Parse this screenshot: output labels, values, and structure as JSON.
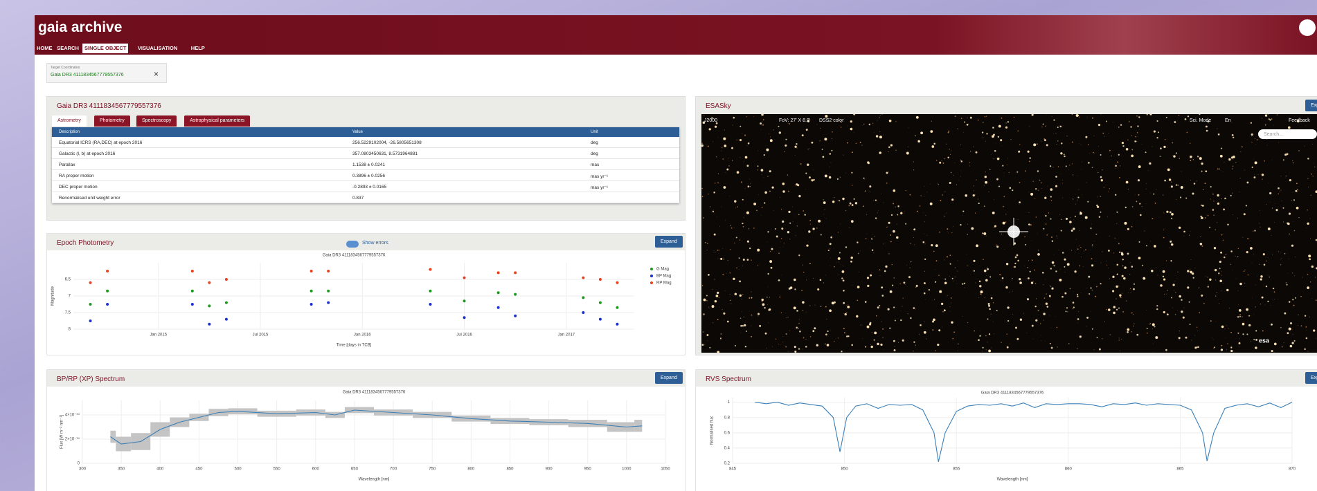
{
  "header": {
    "title": "gaia archive",
    "nav": [
      "HOME",
      "SEARCH",
      "SINGLE OBJECT",
      "VISUALISATION",
      "HELP"
    ]
  },
  "target": {
    "label": "Target Coordinates",
    "value": "Gaia DR3 4111834567779557376",
    "close": "×"
  },
  "object_panel": {
    "title": "Gaia DR3 4111834567779557376",
    "tabs": [
      "Astrometry",
      "Photometry",
      "Spectroscopy",
      "Astrophysical parameters"
    ],
    "table": {
      "columns": [
        "Description",
        "Value",
        "Unit"
      ],
      "rows": [
        [
          "Equatorial ICRS (RA,DEC) at epoch 2016",
          "256.5229102004, -26.5805651308",
          "deg"
        ],
        [
          "Galactic (l, b) at epoch 2016",
          "357.0803450631, 8.5731964881",
          "deg"
        ],
        [
          "Parallax",
          "1.1538 ± 0.0241",
          "mas"
        ],
        [
          "RA proper motion",
          "0.3896 ± 0.0256",
          "mas yr⁻¹"
        ],
        [
          "DEC proper motion",
          "-0.2893 ± 0.0165",
          "mas yr⁻¹"
        ],
        [
          "Renormalised unit weight error",
          "0.837"
        ]
      ]
    }
  },
  "epoch_panel": {
    "title": "Epoch Photometry",
    "toggle": "Show errors",
    "button": "Expand"
  },
  "xp_panel": {
    "title": "BP/RP (XP) Spectrum",
    "button": "Expand"
  },
  "rvs_panel": {
    "title": "RVS Spectrum",
    "button": "Expand"
  },
  "esasky": {
    "title": "ESASky",
    "button": "Expand",
    "frame": "J2000",
    "fov": "FoV: 27' X 8.9'",
    "survey": "DSS2 color",
    "sci_mode": "Sci. Mode",
    "lang": "En",
    "search": "Search...",
    "feedback": "Feedback",
    "logo": "esa"
  },
  "chart_data": [
    {
      "type": "scatter",
      "title": "Gaia DR3 4111834567779557376",
      "x_label": "Time [days in TCB]",
      "y_label": "Magnitude",
      "grid": true,
      "legend": "right",
      "x": [
        "2014-09",
        "2014-10",
        "2015-03",
        "2015-04",
        "2015-05",
        "2015-10",
        "2015-11",
        "2016-05",
        "2016-07",
        "2016-09",
        "2016-10",
        "2017-02",
        "2017-03",
        "2017-04"
      ],
      "xlim": [
        "2014-08",
        "2017-05"
      ],
      "xticks": [
        {
          "value": "2015-01",
          "label": "Jan 2015"
        },
        {
          "value": "2015-07",
          "label": "Jul 2015"
        },
        {
          "value": "2016-01",
          "label": "Jan 2016"
        },
        {
          "value": "2016-07",
          "label": "Jul 2016"
        },
        {
          "value": "2017-01",
          "label": "Jan 2017"
        }
      ],
      "ylim": [
        8,
        6
      ],
      "yticks": [
        6.5,
        7,
        7.5,
        8
      ],
      "series": [
        {
          "name": "G Mag",
          "color": "#1a9a1a",
          "values": [
            7.25,
            6.85,
            6.85,
            7.3,
            7.2,
            6.85,
            6.85,
            6.85,
            7.15,
            6.9,
            6.95,
            7.05,
            7.2,
            7.35
          ]
        },
        {
          "name": "BP Mag",
          "color": "#1a2fd0",
          "values": [
            7.75,
            7.25,
            7.25,
            7.85,
            7.7,
            7.25,
            7.2,
            7.25,
            7.65,
            7.35,
            7.6,
            7.5,
            7.7,
            7.85
          ]
        },
        {
          "name": "RP Mag",
          "color": "#e8401c",
          "values": [
            6.6,
            6.25,
            6.25,
            6.6,
            6.5,
            6.25,
            6.25,
            6.2,
            6.45,
            6.3,
            6.3,
            6.45,
            6.5,
            6.6
          ]
        }
      ]
    },
    {
      "type": "line",
      "title": "Gaia DR3 4111834567779557376",
      "x_label": "Wavelength [nm]",
      "y_label": "Flux [W m⁻² nm⁻¹]",
      "grid": true,
      "xlim": [
        300,
        1050
      ],
      "xticks": [
        300,
        350,
        400,
        450,
        500,
        550,
        600,
        650,
        700,
        750,
        800,
        850,
        900,
        950,
        1000,
        1050
      ],
      "ylim": [
        0,
        5.2e-14
      ],
      "yticks": [
        0,
        {
          "value": 2e-14,
          "label": "2×10⁻¹⁴"
        },
        {
          "value": 4e-14,
          "label": "4×10⁻¹⁴"
        }
      ],
      "x": [
        336,
        350,
        375,
        400,
        425,
        450,
        475,
        500,
        550,
        600,
        625,
        650,
        700,
        750,
        800,
        850,
        900,
        950,
        1000,
        1020
      ],
      "series": [
        {
          "color": "#3a7fb7",
          "band_color": "#c4c4c4",
          "values": [
            2.2e-14,
            1.6e-14,
            1.8e-14,
            2.8e-14,
            3.4e-14,
            3.8e-14,
            4.2e-14,
            4.3e-14,
            4.1e-14,
            4.2e-14,
            4e-14,
            4.4e-14,
            4.2e-14,
            4e-14,
            3.7e-14,
            3.5e-14,
            3.4e-14,
            3.3e-14,
            3e-14,
            3.1e-14
          ],
          "errors": [
            5e-15,
            6e-15,
            7e-15,
            6e-15,
            4e-15,
            3e-15,
            3e-15,
            2.5e-15,
            2.5e-15,
            2.5e-15,
            2.5e-15,
            2.5e-15,
            2.5e-15,
            2.5e-15,
            2.5e-15,
            2.5e-15,
            2.5e-15,
            3e-15,
            4e-15,
            5e-15
          ]
        }
      ]
    },
    {
      "type": "line",
      "title": "Gaia DR3 4111834567779557376",
      "x_label": "Wavelength [nm]",
      "y_label": "Normalised flux",
      "grid": true,
      "xlim": [
        845,
        870
      ],
      "xticks": [
        845,
        850,
        855,
        860,
        865,
        870
      ],
      "ylim": [
        0.2,
        1.06
      ],
      "yticks": [
        0.2,
        0.4,
        0.6,
        0.8,
        1
      ],
      "x": [
        846,
        846.5,
        847,
        847.5,
        848,
        848.5,
        849,
        849.5,
        849.8,
        850.1,
        850.5,
        851,
        851.5,
        852,
        852.5,
        853,
        853.5,
        854,
        854.2,
        854.5,
        855,
        855.5,
        856,
        856.5,
        857,
        857.5,
        858,
        858.5,
        859,
        859.5,
        860,
        860.5,
        861,
        861.5,
        862,
        862.5,
        863,
        863.5,
        864,
        864.5,
        865,
        865.5,
        866,
        866.2,
        866.5,
        867,
        867.5,
        868,
        868.5,
        869,
        869.5,
        870
      ],
      "series": [
        {
          "color": "#3a7fb7",
          "values": [
            1,
            0.98,
            1,
            0.96,
            0.99,
            0.97,
            0.95,
            0.8,
            0.35,
            0.8,
            0.95,
            0.98,
            0.92,
            0.97,
            0.96,
            0.97,
            0.9,
            0.6,
            0.22,
            0.6,
            0.88,
            0.95,
            0.97,
            0.96,
            0.98,
            0.95,
            0.99,
            0.93,
            0.98,
            0.97,
            0.98,
            0.98,
            0.97,
            0.94,
            0.98,
            0.97,
            0.99,
            0.96,
            0.98,
            0.97,
            0.96,
            0.9,
            0.6,
            0.23,
            0.6,
            0.92,
            0.96,
            0.98,
            0.94,
            0.99,
            0.93,
            1
          ]
        }
      ]
    }
  ]
}
